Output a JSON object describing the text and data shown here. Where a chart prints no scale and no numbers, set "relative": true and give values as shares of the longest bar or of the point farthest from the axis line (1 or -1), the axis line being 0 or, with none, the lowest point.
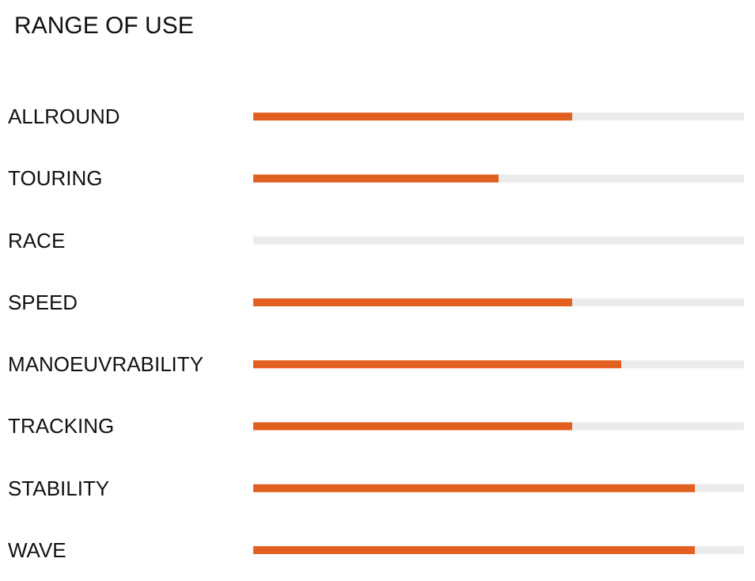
{
  "chart_data": {
    "type": "bar",
    "title": "RANGE OF USE",
    "orientation": "horizontal",
    "relative": true,
    "stacked": true,
    "categories": [
      "ALLROUND",
      "TOURING",
      "RACE",
      "SPEED",
      "MANOEUVRABILITY",
      "TRACKING",
      "STABILITY",
      "WAVE"
    ],
    "series": [
      {
        "color": "#e2601f",
        "values": [
          0.65,
          0.5,
          0,
          0.65,
          0.75,
          0.65,
          0.9,
          0.9
        ]
      },
      {
        "color": "#ebebeb",
        "values": [
          0.35,
          0.5,
          1,
          0.35,
          0.25,
          0.35,
          0.1,
          0.1
        ]
      }
    ]
  }
}
